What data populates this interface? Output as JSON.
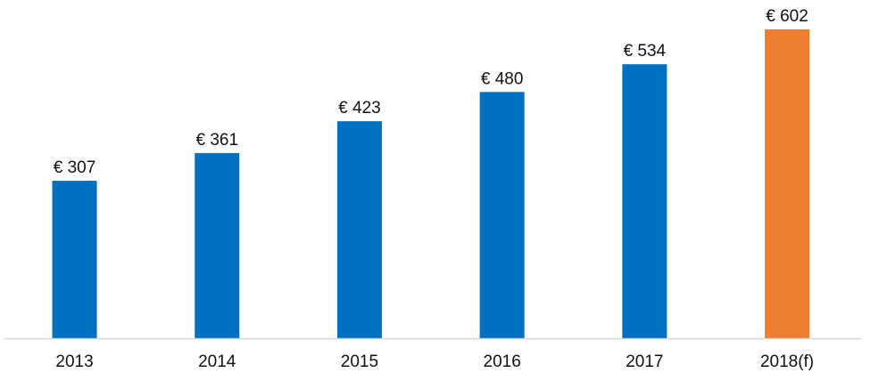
{
  "chart_data": {
    "type": "bar",
    "title": "",
    "xlabel": "",
    "ylabel": "",
    "categories": [
      "2013",
      "2014",
      "2015",
      "2016",
      "2017",
      "2018(f)"
    ],
    "values": [
      307,
      361,
      423,
      480,
      534,
      602
    ],
    "data_labels": [
      "€ 307",
      "€ 361",
      "€ 423",
      "€ 480",
      "€ 534",
      "€ 602"
    ],
    "forecast": [
      false,
      false,
      false,
      false,
      false,
      true
    ],
    "ylim": [
      0,
      602
    ],
    "grid": false,
    "colors": {
      "actual": "#0070c0",
      "forecast": "#ed7d31",
      "axis": "#d9d9d9"
    }
  }
}
